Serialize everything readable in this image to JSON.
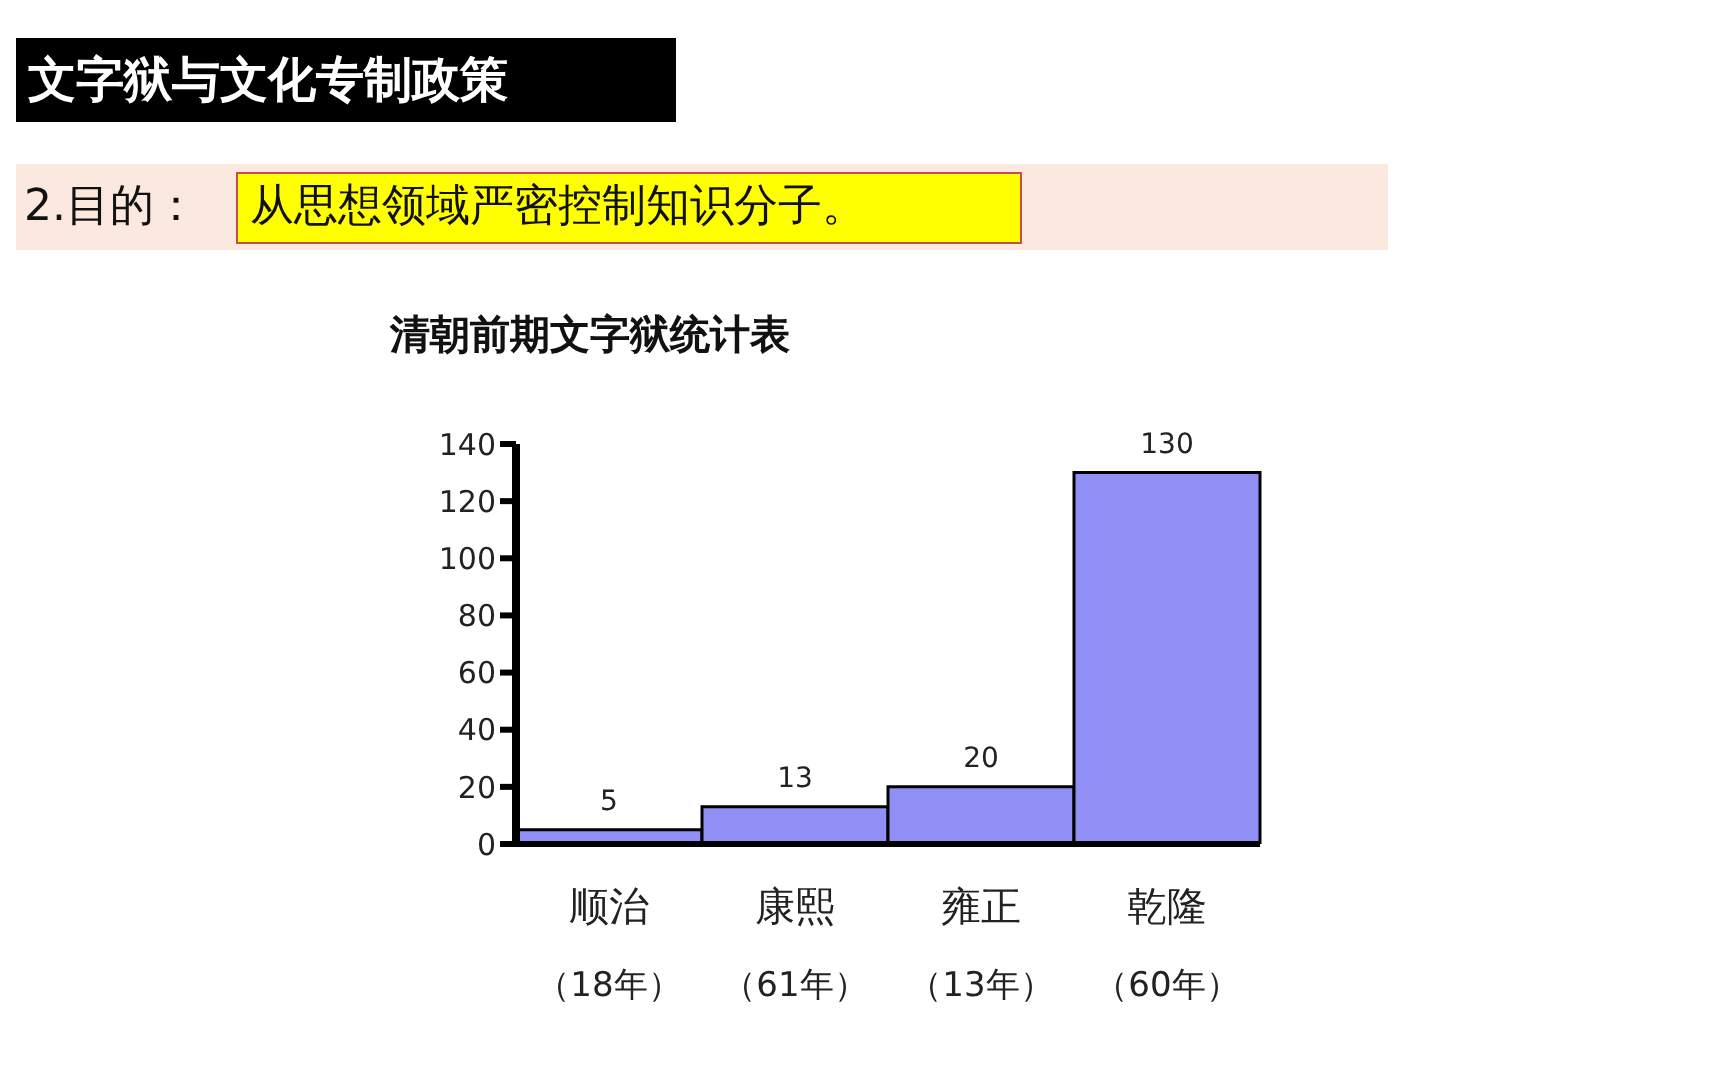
{
  "chart_data": {
    "type": "bar",
    "title": "清朝前期文字狱统计表",
    "annotations": [
      "文字狱与文化专制政策",
      "2.目的：",
      "从思想领域严密控制知识分子。"
    ],
    "categories": [
      "顺治（18年）",
      "康熙（61年）",
      "雍正（13年）",
      "乾隆（60年）"
    ],
    "values": [
      5,
      13,
      20,
      130
    ],
    "color": "#8f8ff5",
    "ylim": [
      0,
      140
    ],
    "yticks": [
      0,
      20,
      40,
      60,
      80,
      100,
      120,
      140
    ],
    "grid": false,
    "data_labels": true
  }
}
